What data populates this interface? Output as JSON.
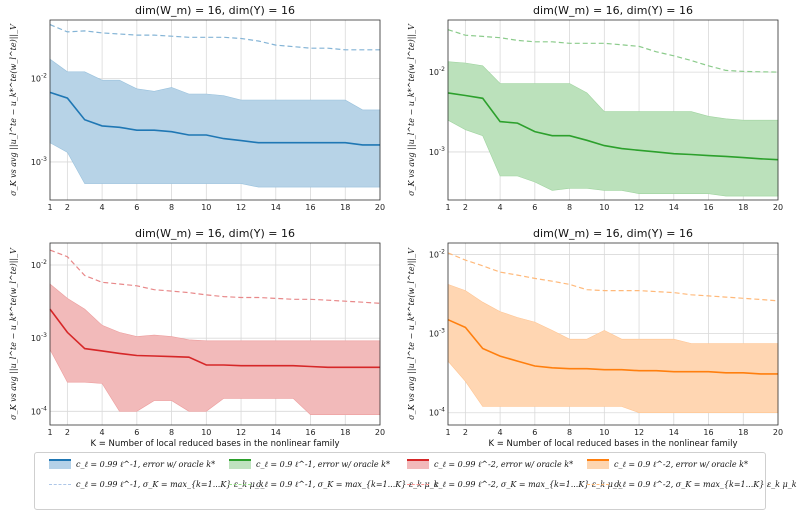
{
  "chart_data": [
    {
      "type": "line",
      "title": "dim(W_m) = 16, dim(Y) = 16",
      "xlabel": "",
      "ylabel": "σ_K vs avg ||u_l^te − u_k*^te(w_l^te)||_V",
      "yscale": "log",
      "ylim": [
        0.00035,
        0.05
      ],
      "y_ticks": [
        {
          "v": 0.01,
          "label": "10^-2"
        },
        {
          "v": 0.001,
          "label": "10^-3"
        }
      ],
      "x": [
        1,
        2,
        3,
        4,
        5,
        6,
        7,
        8,
        9,
        10,
        11,
        12,
        13,
        14,
        15,
        16,
        17,
        18,
        19,
        20
      ],
      "x_ticks": [
        1,
        2,
        4,
        6,
        8,
        10,
        12,
        14,
        16,
        18,
        20
      ],
      "color": "#1f77b4",
      "series": [
        {
          "name": "error w/ oracle k*",
          "values": [
            0.0068,
            0.0058,
            0.0032,
            0.0027,
            0.0026,
            0.0024,
            0.0024,
            0.0023,
            0.0021,
            0.0021,
            0.0019,
            0.0018,
            0.0017,
            0.0017,
            0.0017,
            0.0017,
            0.0017,
            0.0017,
            0.0016,
            0.0016
          ],
          "upper": [
            0.017,
            0.012,
            0.012,
            0.0095,
            0.0095,
            0.0075,
            0.007,
            0.0078,
            0.0065,
            0.0065,
            0.0062,
            0.0055,
            0.0055,
            0.0055,
            0.0055,
            0.0055,
            0.0055,
            0.0055,
            0.0042,
            0.0042
          ],
          "lower": [
            0.0017,
            0.0013,
            0.00055,
            0.00055,
            0.00055,
            0.00055,
            0.00055,
            0.00055,
            0.00055,
            0.00055,
            0.00055,
            0.00055,
            0.0005,
            0.0005,
            0.0005,
            0.0005,
            0.0005,
            0.0005,
            0.0005,
            0.0005
          ]
        },
        {
          "name": "σ_K = max ε_k μ_k",
          "dashed": true,
          "values": [
            0.044,
            0.036,
            0.037,
            0.035,
            0.034,
            0.033,
            0.033,
            0.032,
            0.031,
            0.031,
            0.031,
            0.03,
            0.028,
            0.025,
            0.024,
            0.023,
            0.023,
            0.022,
            0.022,
            0.022
          ]
        }
      ]
    },
    {
      "type": "line",
      "title": "dim(W_m) = 16, dim(Y) = 16",
      "xlabel": "",
      "ylabel": "σ_K vs avg ||u_l^te − u_k*^te(w_l^te)||_V",
      "yscale": "log",
      "ylim": [
        0.00025,
        0.045
      ],
      "y_ticks": [
        {
          "v": 0.01,
          "label": "10^-2"
        },
        {
          "v": 0.001,
          "label": "10^-3"
        }
      ],
      "x": [
        1,
        2,
        3,
        4,
        5,
        6,
        7,
        8,
        9,
        10,
        11,
        12,
        13,
        14,
        15,
        16,
        17,
        18,
        19,
        20
      ],
      "x_ticks": [
        1,
        2,
        4,
        6,
        8,
        10,
        12,
        14,
        16,
        18,
        20
      ],
      "color": "#2ca02c",
      "series": [
        {
          "name": "error w/ oracle k*",
          "values": [
            0.0055,
            0.0051,
            0.0047,
            0.0024,
            0.0023,
            0.0018,
            0.0016,
            0.0016,
            0.0014,
            0.0012,
            0.0011,
            0.00105,
            0.001,
            0.00095,
            0.00093,
            0.0009,
            0.00088,
            0.00085,
            0.00082,
            0.0008
          ],
          "upper": [
            0.0135,
            0.013,
            0.012,
            0.0072,
            0.0072,
            0.0072,
            0.0072,
            0.0072,
            0.0055,
            0.0032,
            0.0032,
            0.0032,
            0.0032,
            0.0032,
            0.0032,
            0.0028,
            0.0026,
            0.0025,
            0.0025,
            0.0025
          ],
          "lower": [
            0.0025,
            0.0019,
            0.0016,
            0.0005,
            0.0005,
            0.00042,
            0.00033,
            0.00035,
            0.00035,
            0.00033,
            0.00033,
            0.0003,
            0.0003,
            0.0003,
            0.0003,
            0.0003,
            0.00028,
            0.00028,
            0.00028,
            0.00028
          ]
        },
        {
          "name": "σ_K = max ε_k μ_k",
          "dashed": true,
          "values": [
            0.034,
            0.029,
            0.028,
            0.027,
            0.025,
            0.024,
            0.024,
            0.023,
            0.023,
            0.023,
            0.022,
            0.021,
            0.018,
            0.016,
            0.014,
            0.012,
            0.0105,
            0.0102,
            0.0101,
            0.01
          ]
        }
      ]
    },
    {
      "type": "line",
      "title": "dim(W_m) = 16, dim(Y) = 16",
      "xlabel": "K = Number of local reduced bases in the nonlinear family",
      "ylabel": "σ_K vs avg ||u_l^te − u_k*^te(w_l^te)||_V",
      "yscale": "log",
      "ylim": [
        6.5e-05,
        0.02
      ],
      "y_ticks": [
        {
          "v": 0.01,
          "label": "10^-2"
        },
        {
          "v": 0.001,
          "label": "10^-3"
        },
        {
          "v": 0.0001,
          "label": "10^-4"
        }
      ],
      "x": [
        1,
        2,
        3,
        4,
        5,
        6,
        7,
        8,
        9,
        10,
        11,
        12,
        13,
        14,
        15,
        16,
        17,
        18,
        19,
        20
      ],
      "x_ticks": [
        1,
        2,
        4,
        6,
        8,
        10,
        12,
        14,
        16,
        18,
        20
      ],
      "color": "#d62728",
      "series": [
        {
          "name": "error w/ oracle k*",
          "values": [
            0.0025,
            0.0012,
            0.00072,
            0.00067,
            0.00062,
            0.00058,
            0.00057,
            0.00056,
            0.00055,
            0.00043,
            0.00043,
            0.00042,
            0.00042,
            0.00042,
            0.00042,
            0.00041,
            0.0004,
            0.0004,
            0.0004,
            0.0004
          ],
          "upper": [
            0.0055,
            0.0035,
            0.0025,
            0.0015,
            0.0012,
            0.00105,
            0.0011,
            0.00105,
            0.00095,
            0.00092,
            0.00092,
            0.00092,
            0.00092,
            0.00092,
            0.00092,
            0.00092,
            0.00092,
            0.00092,
            0.00092,
            0.00092
          ],
          "lower": [
            0.0007,
            0.00025,
            0.00025,
            0.00024,
            0.0001,
            0.0001,
            0.00014,
            0.00014,
            0.0001,
            0.0001,
            0.00015,
            0.00015,
            0.00015,
            0.00015,
            0.00015,
            9e-05,
            9e-05,
            9e-05,
            9e-05,
            9e-05
          ]
        },
        {
          "name": "σ_K = max ε_k μ_k",
          "dashed": true,
          "values": [
            0.016,
            0.013,
            0.0072,
            0.0058,
            0.0055,
            0.0052,
            0.0046,
            0.0044,
            0.0042,
            0.0039,
            0.0037,
            0.0036,
            0.0036,
            0.0035,
            0.0034,
            0.0034,
            0.0033,
            0.0032,
            0.0031,
            0.003
          ]
        }
      ]
    },
    {
      "type": "line",
      "title": "dim(W_m) = 16, dim(Y) = 16",
      "xlabel": "K = Number of local reduced bases in the nonlinear family",
      "ylabel": "σ_K vs avg ||u_l^te − u_k*^te(w_l^te)||_V",
      "yscale": "log",
      "ylim": [
        7e-05,
        0.014
      ],
      "y_ticks": [
        {
          "v": 0.01,
          "label": "10^-2"
        },
        {
          "v": 0.001,
          "label": "10^-3"
        },
        {
          "v": 0.0001,
          "label": "10^-4"
        }
      ],
      "x": [
        1,
        2,
        3,
        4,
        5,
        6,
        7,
        8,
        9,
        10,
        11,
        12,
        13,
        14,
        15,
        16,
        17,
        18,
        19,
        20
      ],
      "x_ticks": [
        1,
        2,
        4,
        6,
        8,
        10,
        12,
        14,
        16,
        18,
        20
      ],
      "color": "#ff7f0e",
      "series": [
        {
          "name": "error w/ oracle k*",
          "values": [
            0.0015,
            0.0012,
            0.00065,
            0.00052,
            0.00045,
            0.00039,
            0.00037,
            0.00036,
            0.00036,
            0.00035,
            0.00035,
            0.00034,
            0.00034,
            0.00033,
            0.00033,
            0.00033,
            0.00032,
            0.00032,
            0.00031,
            0.00031
          ],
          "upper": [
            0.0042,
            0.0035,
            0.0025,
            0.0019,
            0.0016,
            0.0014,
            0.0011,
            0.00085,
            0.00085,
            0.0011,
            0.00085,
            0.00085,
            0.00085,
            0.00085,
            0.00075,
            0.00075,
            0.00075,
            0.00075,
            0.00075,
            0.00075
          ],
          "lower": [
            0.00045,
            0.00025,
            0.00012,
            0.00012,
            0.00012,
            0.00012,
            0.00012,
            0.00012,
            0.00012,
            0.00012,
            0.00012,
            0.0001,
            0.0001,
            0.0001,
            0.0001,
            0.0001,
            0.0001,
            0.0001,
            0.0001,
            0.0001
          ]
        },
        {
          "name": "σ_K = max ε_k μ_k",
          "dashed": true,
          "values": [
            0.0105,
            0.0085,
            0.0072,
            0.006,
            0.0055,
            0.005,
            0.0046,
            0.0042,
            0.0036,
            0.0035,
            0.0035,
            0.0035,
            0.0034,
            0.0033,
            0.0031,
            0.003,
            0.0029,
            0.0028,
            0.0027,
            0.0026
          ]
        }
      ]
    }
  ],
  "legend": {
    "items": [
      {
        "label": "c_ℓ = 0.99 ℓ^-1, error w/ oracle k*",
        "color": "#1f77b4",
        "kind": "band"
      },
      {
        "label": "c_ℓ = 0.9 ℓ^-1, error w/ oracle k*",
        "color": "#2ca02c",
        "kind": "band"
      },
      {
        "label": "c_ℓ = 0.99 ℓ^-2, error w/ oracle k*",
        "color": "#d62728",
        "kind": "band"
      },
      {
        "label": "c_ℓ = 0.9 ℓ^-2, error w/ oracle k*",
        "color": "#ff7f0e",
        "kind": "band"
      },
      {
        "label": "c_ℓ = 0.99 ℓ^-1, σ_K = max_{k=1...K} ε_k μ_k",
        "color": "#aec7e8",
        "kind": "dash"
      },
      {
        "label": "c_ℓ = 0.9 ℓ^-1, σ_K = max_{k=1...K} ε_k μ_k",
        "color": "#98df8a",
        "kind": "dash"
      },
      {
        "label": "c_ℓ = 0.99 ℓ^-2, σ_K = max_{k=1...K} ε_k μ_k",
        "color": "#ff9896",
        "kind": "dash"
      },
      {
        "label": "c_ℓ = 0.9 ℓ^-2, σ_K = max_{k=1...K} ε_k μ_k",
        "color": "#ffbb78",
        "kind": "dash"
      }
    ]
  }
}
